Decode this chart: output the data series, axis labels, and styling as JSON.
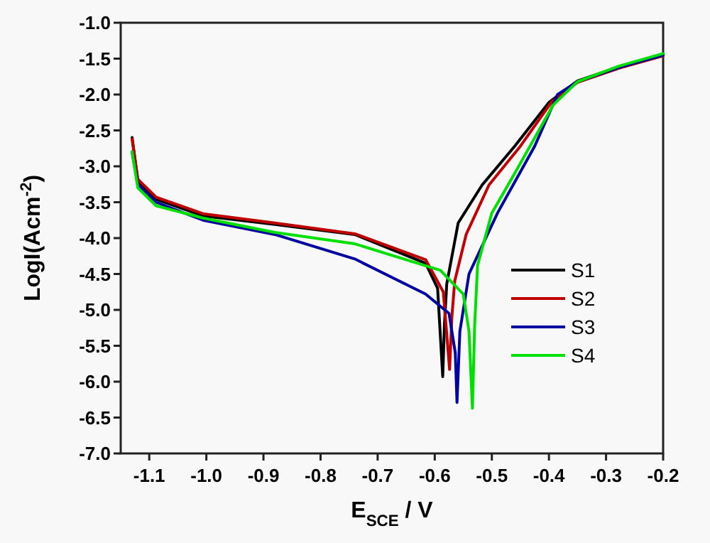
{
  "chart_data": {
    "type": "line",
    "xlabel": "E$_{SCE}$ / V",
    "ylabel": "LogI(Acm$^{-2}$)",
    "xlim": [
      -1.15,
      -0.2
    ],
    "ylim": [
      -7,
      -1
    ],
    "xticks": [
      -1.1,
      {
        "value": -1,
        "label": "-1.0"
      },
      -0.9,
      -0.8,
      -0.7,
      -0.6,
      -0.5,
      -0.4,
      -0.3,
      -0.2
    ],
    "yticks": [
      {
        "value": -7,
        "label": "-7.0"
      },
      -6.5,
      {
        "value": -6,
        "label": "-6.0"
      },
      -5.5,
      {
        "value": -5,
        "label": "-5.0"
      },
      -4.5,
      {
        "value": -4,
        "label": "-4.0"
      },
      -3.5,
      {
        "value": -3,
        "label": "-3.0"
      },
      -2.5,
      {
        "value": -2,
        "label": "-2.0"
      },
      -1.5,
      {
        "value": -1,
        "label": "-1.0"
      }
    ],
    "grid": false,
    "legend": "right",
    "line_style": "solid",
    "series": [
      {
        "name": "S1",
        "color": "#000000",
        "x": [
          -1.13,
          -1.12,
          -1.088,
          -1.006,
          -0.88,
          -0.74,
          -0.616,
          -0.595,
          -0.586,
          -0.583,
          -0.579,
          -0.559,
          -0.517,
          -0.46,
          -0.4,
          -0.35,
          -0.276,
          -0.2
        ],
        "values": [
          -2.6,
          -3.2,
          -3.46,
          -3.69,
          -3.81,
          -3.95,
          -4.35,
          -4.7,
          -5.93,
          -5.2,
          -4.64,
          -3.79,
          -3.26,
          -2.72,
          -2.11,
          -1.81,
          -1.61,
          -1.44
        ]
      },
      {
        "name": "S2",
        "color": "#c00000",
        "x": [
          -1.13,
          -1.12,
          -1.088,
          -1.006,
          -0.88,
          -0.74,
          -0.616,
          -0.585,
          -0.574,
          -0.57,
          -0.565,
          -0.545,
          -0.505,
          -0.45,
          -0.395,
          -0.35,
          -0.276,
          -0.2
        ],
        "values": [
          -2.62,
          -3.18,
          -3.43,
          -3.66,
          -3.79,
          -3.94,
          -4.3,
          -4.75,
          -5.83,
          -5.1,
          -4.6,
          -3.95,
          -3.26,
          -2.72,
          -2.1,
          -1.83,
          -1.63,
          -1.46
        ]
      },
      {
        "name": "S3",
        "color": "#0000a0",
        "x": [
          -1.13,
          -1.12,
          -1.088,
          -1.006,
          -0.88,
          -0.74,
          -0.616,
          -0.575,
          -0.564,
          -0.561,
          -0.556,
          -0.54,
          -0.49,
          -0.425,
          -0.385,
          -0.35,
          -0.276,
          -0.2
        ],
        "values": [
          -2.8,
          -3.25,
          -3.5,
          -3.75,
          -3.95,
          -4.29,
          -4.78,
          -5.05,
          -5.6,
          -6.29,
          -5.3,
          -4.5,
          -3.65,
          -2.72,
          -2.0,
          -1.82,
          -1.62,
          -1.45
        ]
      },
      {
        "name": "S4",
        "color": "#00e000",
        "x": [
          -1.13,
          -1.12,
          -1.088,
          -1.006,
          -0.88,
          -0.74,
          -0.59,
          -0.55,
          -0.54,
          -0.534,
          -0.53,
          -0.525,
          -0.5,
          -0.46,
          -0.393,
          -0.35,
          -0.276,
          -0.2
        ],
        "values": [
          -2.8,
          -3.3,
          -3.55,
          -3.72,
          -3.92,
          -4.08,
          -4.45,
          -4.78,
          -5.3,
          -6.37,
          -5.2,
          -4.38,
          -3.65,
          -3.1,
          -2.15,
          -1.82,
          -1.6,
          -1.43
        ]
      }
    ]
  }
}
